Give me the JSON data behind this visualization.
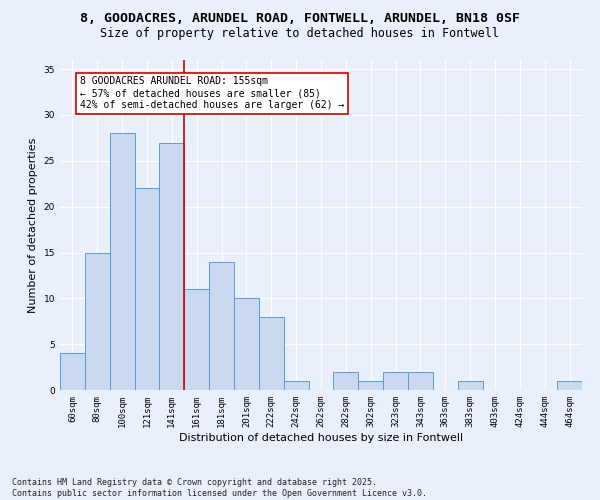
{
  "title1": "8, GOODACRES, ARUNDEL ROAD, FONTWELL, ARUNDEL, BN18 0SF",
  "title2": "Size of property relative to detached houses in Fontwell",
  "xlabel": "Distribution of detached houses by size in Fontwell",
  "ylabel": "Number of detached properties",
  "categories": [
    "60sqm",
    "80sqm",
    "100sqm",
    "121sqm",
    "141sqm",
    "161sqm",
    "181sqm",
    "201sqm",
    "222sqm",
    "242sqm",
    "262sqm",
    "282sqm",
    "302sqm",
    "323sqm",
    "343sqm",
    "363sqm",
    "383sqm",
    "403sqm",
    "424sqm",
    "444sqm",
    "464sqm"
  ],
  "values": [
    4,
    15,
    28,
    22,
    27,
    11,
    14,
    10,
    8,
    1,
    0,
    2,
    1,
    2,
    2,
    0,
    1,
    0,
    0,
    0,
    1
  ],
  "bar_color": "#c9d9f0",
  "bar_edge_color": "#5b9bd5",
  "annotation_text_line1": "8 GOODACRES ARUNDEL ROAD: 155sqm",
  "annotation_text_line2": "← 57% of detached houses are smaller (85)",
  "annotation_text_line3": "42% of semi-detached houses are larger (62) →",
  "annotation_box_color": "#ffffff",
  "annotation_box_edge": "#cc0000",
  "vline_color": "#cc0000",
  "vline_x_index": 4.5,
  "ylim": [
    0,
    36
  ],
  "yticks": [
    0,
    5,
    10,
    15,
    20,
    25,
    30,
    35
  ],
  "footnote": "Contains HM Land Registry data © Crown copyright and database right 2025.\nContains public sector information licensed under the Open Government Licence v3.0.",
  "bg_color": "#eaf0fb",
  "grid_color": "#ffffff",
  "title_fontsize": 9.5,
  "subtitle_fontsize": 8.5,
  "tick_fontsize": 6.5,
  "label_fontsize": 8,
  "annotation_fontsize": 7,
  "footnote_fontsize": 6
}
